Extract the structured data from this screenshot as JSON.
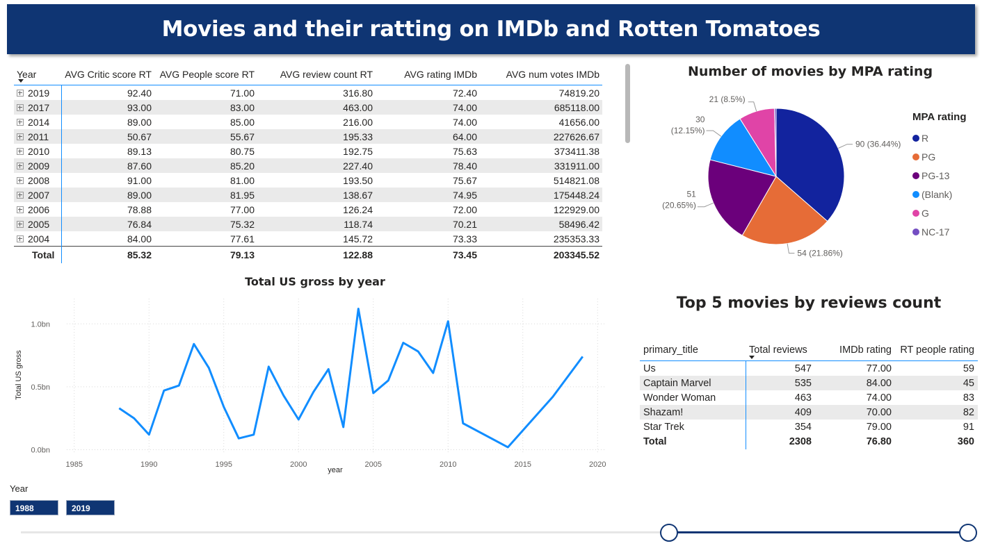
{
  "page": {
    "title": "Movies and their ratting on IMDb and Rotten Tomatoes"
  },
  "main_table": {
    "columns": [
      "Year",
      "AVG Critic score RT",
      "AVG People score RT",
      "AVG review count RT",
      "AVG rating IMDb",
      "AVG num votes IMDb"
    ],
    "rows": [
      [
        "2019",
        "92.40",
        "71.00",
        "316.80",
        "72.40",
        "74819.20"
      ],
      [
        "2017",
        "93.00",
        "83.00",
        "463.00",
        "74.00",
        "685118.00"
      ],
      [
        "2014",
        "89.00",
        "85.00",
        "216.00",
        "74.00",
        "41656.00"
      ],
      [
        "2011",
        "50.67",
        "55.67",
        "195.33",
        "64.00",
        "227626.67"
      ],
      [
        "2010",
        "89.13",
        "80.75",
        "192.75",
        "75.63",
        "373411.38"
      ],
      [
        "2009",
        "87.60",
        "85.20",
        "227.40",
        "78.40",
        "331911.00"
      ],
      [
        "2008",
        "91.00",
        "81.00",
        "193.50",
        "75.67",
        "514821.08"
      ],
      [
        "2007",
        "89.00",
        "81.95",
        "138.67",
        "74.95",
        "175448.24"
      ],
      [
        "2006",
        "78.88",
        "77.00",
        "126.24",
        "72.00",
        "122929.00"
      ],
      [
        "2005",
        "76.84",
        "75.32",
        "118.74",
        "70.21",
        "58496.42"
      ],
      [
        "2004",
        "84.00",
        "77.61",
        "145.72",
        "73.33",
        "235353.33"
      ]
    ],
    "total": [
      "Total",
      "85.32",
      "79.13",
      "122.88",
      "73.45",
      "203345.52"
    ]
  },
  "chart_data": [
    {
      "type": "line",
      "title": "Total US gross by year",
      "xlabel": "year",
      "ylabel": "Total US gross",
      "x_ticks": [
        "1985",
        "1990",
        "1995",
        "2000",
        "2005",
        "2010",
        "2015",
        "2020"
      ],
      "y_ticks": [
        "0.0bn",
        "0.5bn",
        "1.0bn"
      ],
      "xlim": [
        1984.5,
        2020.5
      ],
      "ylim": [
        -0.03,
        1.2
      ],
      "color": "#118dff",
      "x": [
        1988,
        1989,
        1990,
        1991,
        1992,
        1993,
        1994,
        1995,
        1996,
        1997,
        1998,
        1999,
        2000,
        2001,
        2002,
        2003,
        2004,
        2005,
        2006,
        2007,
        2008,
        2009,
        2010,
        2011,
        2014,
        2017,
        2019
      ],
      "values": [
        0.33,
        0.25,
        0.12,
        0.47,
        0.51,
        0.84,
        0.65,
        0.34,
        0.09,
        0.12,
        0.66,
        0.43,
        0.24,
        0.46,
        0.64,
        0.18,
        1.12,
        0.45,
        0.55,
        0.85,
        0.78,
        0.61,
        1.02,
        0.21,
        0.02,
        0.42,
        0.74
      ]
    },
    {
      "type": "pie",
      "title": "Number of movies by MPA rating",
      "legend_title": "MPA rating",
      "legend_position": "right",
      "slices": [
        {
          "label": "R",
          "value": 90,
          "data_label": "90 (36.44%)",
          "color": "#12239e"
        },
        {
          "label": "PG",
          "value": 54,
          "data_label": "54 (21.86%)",
          "color": "#e66c37"
        },
        {
          "label": "PG-13",
          "value": 51,
          "data_label_1": "51",
          "data_label_2": "(20.65%)",
          "color": "#6b007b"
        },
        {
          "label": "(Blank)",
          "value": 30,
          "data_label_1": "30",
          "data_label_2": "(12.15%)",
          "color": "#118dff"
        },
        {
          "label": "G",
          "value": 21,
          "data_label": "21 (8.5%)",
          "color": "#e044a7"
        },
        {
          "label": "NC-17",
          "value": 1,
          "color": "#744ec2"
        }
      ]
    }
  ],
  "top5": {
    "title": "Top 5 movies by reviews count",
    "columns": [
      "primary_title",
      "Total reviews",
      "IMDb rating",
      "RT people rating"
    ],
    "rows": [
      [
        "Us",
        "547",
        "77.00",
        "59"
      ],
      [
        "Captain Marvel",
        "535",
        "84.00",
        "45"
      ],
      [
        "Wonder Woman",
        "463",
        "74.00",
        "83"
      ],
      [
        "Shazam!",
        "409",
        "70.00",
        "82"
      ],
      [
        "Star Trek",
        "354",
        "79.00",
        "91"
      ]
    ],
    "total": [
      "Total",
      "2308",
      "76.80",
      "360"
    ]
  },
  "slicer": {
    "label": "Year",
    "start": "1988",
    "end": "2019",
    "start_fraction": 0.684,
    "end_fraction": 1.0
  }
}
